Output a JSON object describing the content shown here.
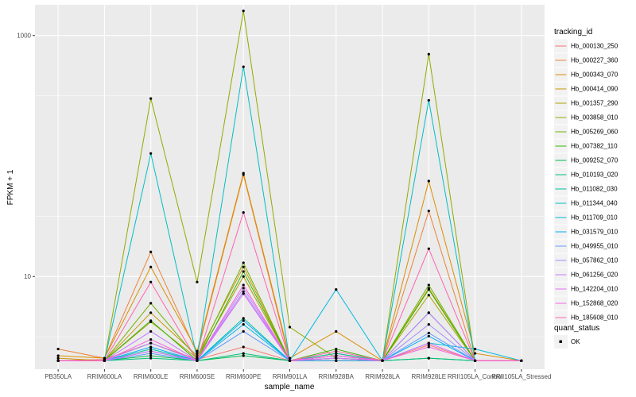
{
  "chart_data": {
    "type": "line",
    "xlabel": "sample_name",
    "ylabel": "FPKM + 1",
    "y_scale": "log10",
    "ylim": [
      1.7,
      1800
    ],
    "y_ticks": [
      10,
      1000
    ],
    "y_tick_labels": [
      "10",
      "1000"
    ],
    "grid": true,
    "legend_position": "right",
    "categories": [
      "PB350LA",
      "RRIM600LA",
      "RRIM600LE",
      "RRIM600SE",
      "RRIM600PE",
      "RRIM901LA",
      "RRIM928BA",
      "RRIM928LA",
      "RRIM928LE",
      "RRII105LA_Control",
      "RRII105LA_Stressed"
    ],
    "legend": {
      "color_title": "tracking_id",
      "shape_title": "quant_status",
      "shape_entries": [
        "OK"
      ]
    },
    "series": [
      {
        "name": "Hb_000130_250",
        "color": "#F8766D",
        "values": [
          2.0,
          2.05,
          2.8,
          2.05,
          2.6,
          2.0,
          2.1,
          2.0,
          2.7,
          2.0,
          2.0
        ]
      },
      {
        "name": "Hb_000227_360",
        "color": "#EC8239",
        "values": [
          2.5,
          2.1,
          16.0,
          2.3,
          70.0,
          2.0,
          2.2,
          2.0,
          35.0,
          2.0,
          2.0
        ]
      },
      {
        "name": "Hb_000343_070",
        "color": "#DB8E00",
        "values": [
          2.2,
          2.1,
          12.0,
          2.4,
          72.0,
          2.1,
          3.5,
          2.0,
          62.0,
          2.3,
          2.0
        ]
      },
      {
        "name": "Hb_000414_090",
        "color": "#C79800",
        "values": [
          2.1,
          2.0,
          5.0,
          2.2,
          12.0,
          2.0,
          2.3,
          2.0,
          8.0,
          2.0,
          2.0
        ]
      },
      {
        "name": "Hb_001357_290",
        "color": "#AFA100",
        "values": [
          2.0,
          2.0,
          4.2,
          2.1,
          10.0,
          2.0,
          2.2,
          2.0,
          7.0,
          2.0,
          2.0
        ]
      },
      {
        "name": "Hb_003858_010",
        "color": "#93AA00",
        "values": [
          2.0,
          2.0,
          300.0,
          9.0,
          1600.0,
          3.8,
          2.1,
          2.0,
          700.0,
          2.0,
          2.0
        ]
      },
      {
        "name": "Hb_005269_060",
        "color": "#72B000",
        "values": [
          2.0,
          2.0,
          6.0,
          2.1,
          13.0,
          2.0,
          2.1,
          2.0,
          8.5,
          2.0,
          2.0
        ]
      },
      {
        "name": "Hb_007382_110",
        "color": "#39B600",
        "values": [
          2.0,
          2.0,
          4.3,
          2.0,
          11.0,
          2.0,
          2.5,
          2.0,
          7.8,
          2.0,
          2.0
        ]
      },
      {
        "name": "Hb_009252_070",
        "color": "#00BB4E",
        "values": [
          2.0,
          2.0,
          2.2,
          2.0,
          2.2,
          2.0,
          2.0,
          2.0,
          2.1,
          2.0,
          2.0
        ]
      },
      {
        "name": "Hb_010193_020",
        "color": "#00BF7D",
        "values": [
          2.0,
          2.0,
          2.1,
          2.0,
          2.3,
          2.0,
          2.0,
          2.0,
          2.1,
          2.0,
          2.0
        ]
      },
      {
        "name": "Hb_011082_030",
        "color": "#00C1A3",
        "values": [
          2.0,
          2.0,
          2.5,
          2.0,
          4.5,
          2.0,
          2.3,
          2.0,
          5.0,
          2.0,
          2.0
        ]
      },
      {
        "name": "Hb_011344_040",
        "color": "#00BFC4",
        "values": [
          2.0,
          2.0,
          105.0,
          2.1,
          550.0,
          2.0,
          2.2,
          2.0,
          290.0,
          2.0,
          2.0
        ]
      },
      {
        "name": "Hb_011709_010",
        "color": "#00B8E5",
        "values": [
          2.0,
          2.0,
          2.4,
          2.0,
          4.0,
          2.0,
          7.8,
          2.0,
          2.8,
          2.5,
          2.0
        ]
      },
      {
        "name": "Hb_031579_010",
        "color": "#00ADFA",
        "values": [
          2.0,
          2.0,
          2.6,
          2.0,
          4.3,
          2.0,
          2.1,
          2.0,
          3.2,
          2.0,
          2.0
        ]
      },
      {
        "name": "Hb_049955_010",
        "color": "#619CFF",
        "values": [
          2.0,
          2.0,
          2.3,
          2.0,
          3.5,
          2.0,
          2.0,
          2.0,
          3.4,
          2.0,
          2.0
        ]
      },
      {
        "name": "Hb_057862_010",
        "color": "#A58AFF",
        "values": [
          2.0,
          2.0,
          2.8,
          2.0,
          7.5,
          2.0,
          2.2,
          2.0,
          4.0,
          2.0,
          2.0
        ]
      },
      {
        "name": "Hb_061256_020",
        "color": "#C77CFF",
        "values": [
          2.0,
          2.0,
          3.5,
          2.0,
          8.0,
          2.0,
          2.2,
          2.0,
          5.0,
          2.0,
          2.0
        ]
      },
      {
        "name": "Hb_142204_010",
        "color": "#E36EF6",
        "values": [
          2.0,
          2.0,
          2.4,
          2.0,
          7.2,
          2.0,
          2.1,
          2.0,
          2.8,
          2.0,
          2.0
        ]
      },
      {
        "name": "Hb_152868_020",
        "color": "#F564E3",
        "values": [
          2.0,
          2.0,
          3.0,
          2.0,
          8.5,
          2.0,
          2.2,
          2.0,
          2.6,
          2.0,
          2.0
        ]
      },
      {
        "name": "Hb_185608_010",
        "color": "#FF64B0",
        "values": [
          2.0,
          2.0,
          9.0,
          2.0,
          34.0,
          2.0,
          2.4,
          2.0,
          17.0,
          2.0,
          2.0
        ]
      }
    ]
  }
}
